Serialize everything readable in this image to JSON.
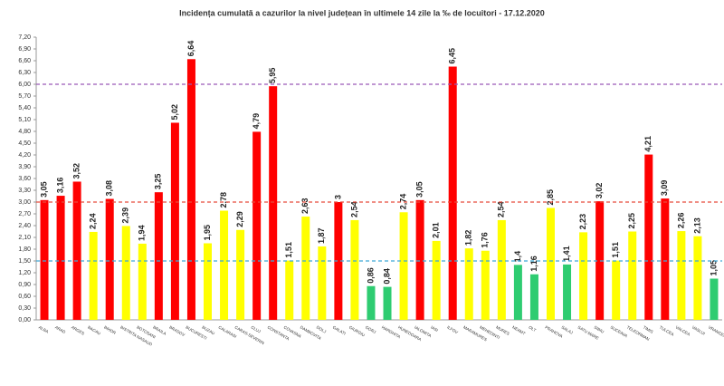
{
  "chart_data": {
    "type": "bar",
    "title": "Incidența cumulată a cazurilor la nivel județean în ultimele 14 zile la ‰ de locuitori - 17.12.2020",
    "categories": [
      "ALBA",
      "ARAD",
      "ARGES",
      "BACAU",
      "BIHOR",
      "BISTRITA NASAUD",
      "BOTOSANI",
      "BRAILA",
      "BRASOV",
      "BUCURESTI",
      "BUZAU",
      "CALARASI",
      "CARAS-SEVERIN",
      "CLUJ",
      "CONSTANTA",
      "COVASNA",
      "DAMBOVITA",
      "DOLJ",
      "GALATI",
      "GIURGIU",
      "GORJ",
      "HARGHITA",
      "HUNEDOARA",
      "IALOMITA",
      "IASI",
      "ILFOV",
      "MARAMURES",
      "MEHEDINTI",
      "MURES",
      "NEAMT",
      "OLT",
      "PRAHOVA",
      "SALAJ",
      "SATU MARE",
      "SIBIU",
      "SUCEAVA",
      "TELEORMAN",
      "TIMIS",
      "TULCEA",
      "VALCEA",
      "VASLUI",
      "VRANCEA"
    ],
    "values": [
      3.05,
      3.16,
      3.52,
      2.24,
      3.08,
      2.39,
      1.94,
      3.25,
      5.02,
      6.64,
      1.95,
      2.78,
      2.29,
      4.79,
      5.95,
      1.51,
      2.63,
      1.87,
      3,
      2.54,
      0.86,
      0.84,
      2.74,
      3.05,
      2.01,
      6.45,
      1.82,
      1.76,
      2.54,
      1.4,
      1.16,
      2.85,
      1.41,
      2.23,
      3.02,
      1.51,
      2.25,
      4.21,
      3.09,
      2.26,
      2.13,
      1.05
    ],
    "value_labels": [
      "3,05",
      "3,16",
      "3,52",
      "2,24",
      "3,08",
      "2,39",
      "1,94",
      "3,25",
      "5,02",
      "6,64",
      "1,95",
      "2,78",
      "2,29",
      "4,79",
      "5,95",
      "1,51",
      "2,63",
      "1,87",
      "3",
      "2,54",
      "0,86",
      "0,84",
      "2,74",
      "3,05",
      "2,01",
      "6,45",
      "1,82",
      "1,76",
      "2,54",
      "1,4",
      "1,16",
      "2,85",
      "1,41",
      "2,23",
      "3,02",
      "1,51",
      "2,25",
      "4,21",
      "3,09",
      "2,26",
      "2,13",
      "1,05"
    ],
    "colors": [
      "#ff0000",
      "#ff0000",
      "#ff0000",
      "#ffff00",
      "#ff0000",
      "#ffff00",
      "#ffff00",
      "#ff0000",
      "#ff0000",
      "#ff0000",
      "#ffff00",
      "#ffff00",
      "#ffff00",
      "#ff0000",
      "#ff0000",
      "#ffff00",
      "#ffff00",
      "#ffff00",
      "#ff0000",
      "#ffff00",
      "#2ecc71",
      "#2ecc71",
      "#ffff00",
      "#ff0000",
      "#ffff00",
      "#ff0000",
      "#ffff00",
      "#ffff00",
      "#ffff00",
      "#2ecc71",
      "#2ecc71",
      "#ffff00",
      "#2ecc71",
      "#ffff00",
      "#ff0000",
      "#ffff00",
      "#ffff00",
      "#ff0000",
      "#ff0000",
      "#ffff00",
      "#ffff00",
      "#2ecc71"
    ],
    "ylim": [
      0,
      7.2
    ],
    "yticks": [
      {
        "value": 0,
        "label": "0,00"
      },
      {
        "value": 0.3,
        "label": "0,30"
      },
      {
        "value": 0.6,
        "label": "0,60"
      },
      {
        "value": 0.9,
        "label": "0,90"
      },
      {
        "value": 1.2,
        "label": "1,20"
      },
      {
        "value": 1.5,
        "label": "1,50"
      },
      {
        "value": 1.8,
        "label": "1,80"
      },
      {
        "value": 2.1,
        "label": "2,10"
      },
      {
        "value": 2.4,
        "label": "2,40"
      },
      {
        "value": 2.7,
        "label": "2,70"
      },
      {
        "value": 3,
        "label": "3,00"
      },
      {
        "value": 3.3,
        "label": "3,30"
      },
      {
        "value": 3.6,
        "label": "3,60"
      },
      {
        "value": 3.9,
        "label": "3,90"
      },
      {
        "value": 4.2,
        "label": "4,20"
      },
      {
        "value": 4.5,
        "label": "4,50"
      },
      {
        "value": 4.8,
        "label": "4,80"
      },
      {
        "value": 5.1,
        "label": "5,10"
      },
      {
        "value": 5.4,
        "label": "5,40"
      },
      {
        "value": 5.7,
        "label": "5,70"
      },
      {
        "value": 6,
        "label": "6,00"
      },
      {
        "value": 6.3,
        "label": "6,30"
      },
      {
        "value": 6.6,
        "label": "6,60"
      },
      {
        "value": 6.9,
        "label": "6,90"
      },
      {
        "value": 7.2,
        "label": "7,20"
      }
    ],
    "reference_lines": [
      {
        "value": 6,
        "color": "#9b59b6"
      },
      {
        "value": 3,
        "color": "#e74c3c"
      },
      {
        "value": 1.5,
        "color": "#3fa9d6"
      }
    ]
  }
}
